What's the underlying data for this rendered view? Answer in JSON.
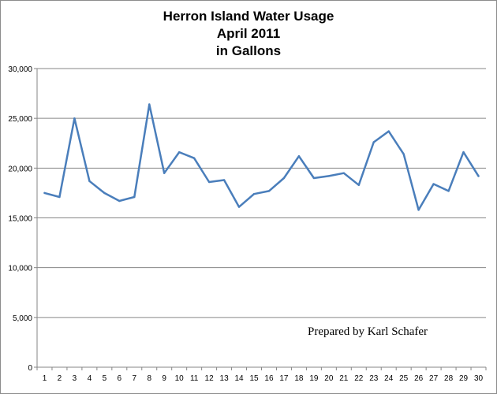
{
  "chart_data": {
    "type": "line",
    "title_lines": [
      "Herron Island Water Usage",
      "April 2011",
      "in Gallons"
    ],
    "xlabel": "",
    "ylabel": "",
    "x": [
      1,
      2,
      3,
      4,
      5,
      6,
      7,
      8,
      9,
      10,
      11,
      12,
      13,
      14,
      15,
      16,
      17,
      18,
      19,
      20,
      21,
      22,
      23,
      24,
      25,
      26,
      27,
      28,
      29,
      30
    ],
    "x_tick_labels": [
      "1",
      "2",
      "3",
      "4",
      "5",
      "6",
      "7",
      "8",
      "9",
      "10",
      "11",
      "12",
      "13",
      "14",
      "15",
      "16",
      "17",
      "18",
      "19",
      "20",
      "21",
      "22",
      "23",
      "24",
      "25",
      "26",
      "27",
      "28",
      "29",
      "30"
    ],
    "series": [
      {
        "values": [
          17500,
          17100,
          25000,
          18700,
          17500,
          16700,
          17100,
          26400,
          19500,
          21600,
          21000,
          18600,
          18800,
          16100,
          17400,
          17700,
          19000,
          21200,
          19000,
          19200,
          19500,
          18300,
          22600,
          23700,
          21400,
          15800,
          18400,
          17700,
          21600,
          19200
        ],
        "color": "#4a7ebb"
      }
    ],
    "y_ticks": [
      0,
      5000,
      10000,
      15000,
      20000,
      25000,
      30000
    ],
    "y_tick_labels": [
      "0",
      "5,000",
      "10,000",
      "15,000",
      "20,000",
      "25,000",
      "30,000"
    ],
    "ylim": [
      0,
      30000
    ],
    "grid": "horizontal-major",
    "legend": "none",
    "annotation": "Prepared by Karl Schafer",
    "colors": {
      "line": "#4a7ebb",
      "grid": "#868686",
      "axis": "#868686"
    }
  }
}
